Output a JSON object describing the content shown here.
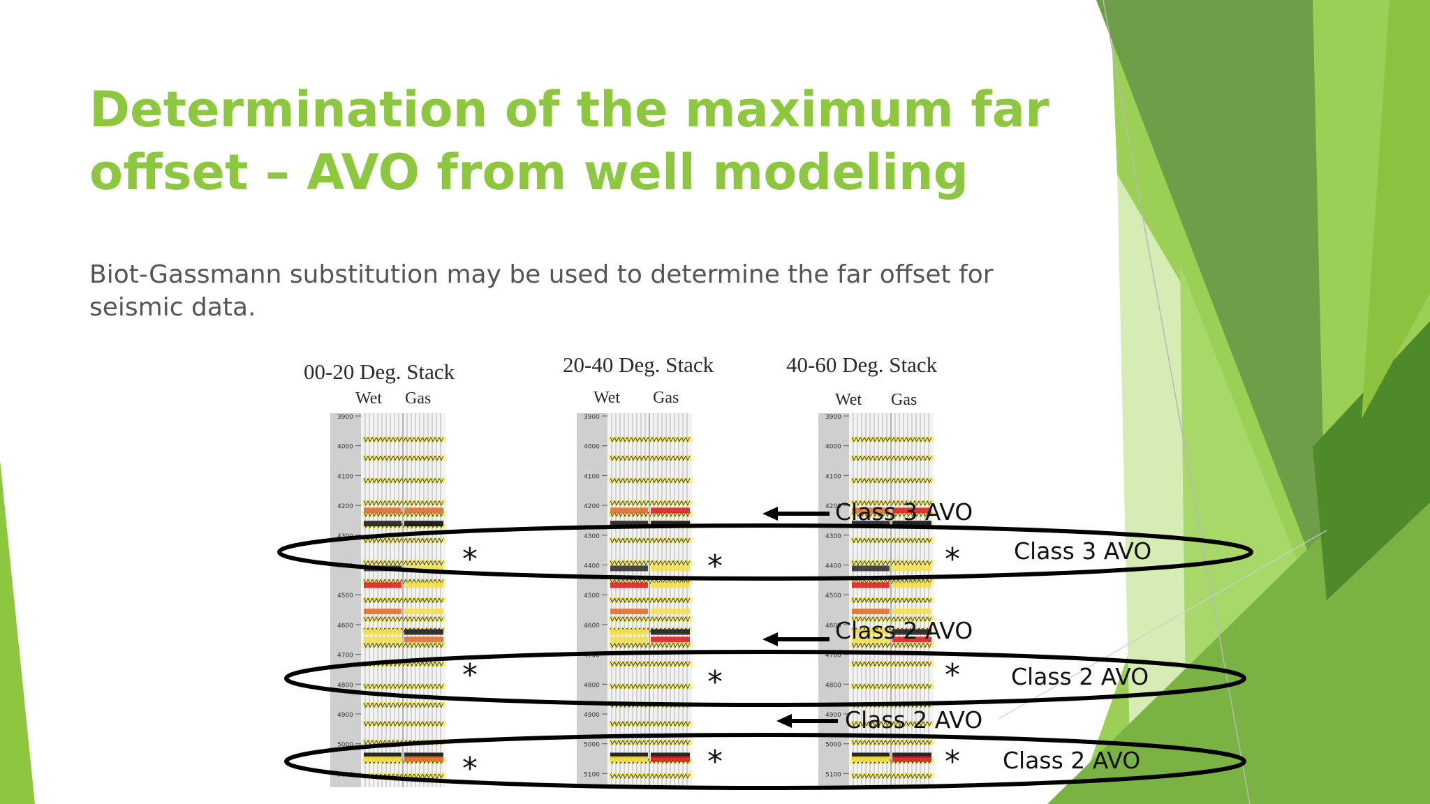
{
  "slide": {
    "title": "Determination of the maximum far offset – AVO from well modeling",
    "body": "Biot-Gassmann substitution may be used to determine the far offset for seismic data."
  },
  "figure": {
    "stacks": [
      {
        "title": "00-20 Deg. Stack",
        "wet": "Wet",
        "gas": "Gas"
      },
      {
        "title": "20-40 Deg. Stack",
        "wet": "Wet",
        "gas": "Gas"
      },
      {
        "title": "40-60 Deg. Stack",
        "wet": "Wet",
        "gas": "Gas"
      }
    ],
    "depth_ticks": [
      "3900",
      "4000",
      "4100",
      "4200",
      "4300",
      "4400",
      "4500",
      "4600",
      "4700",
      "4800",
      "4900",
      "5000",
      "5100"
    ],
    "star": "*",
    "labels": {
      "arrow_class3": "Class 3 AVO",
      "ellipse_class3": "Class 3 AVO",
      "arrow_class2_upper": "Class 2 AVO",
      "ellipse_class2_upper": "Class 2 AVO",
      "arrow_class2_lower": "Class 2 AVO",
      "ellipse_class2_lower": "Class 2 AVO"
    }
  },
  "colors": {
    "title": "#8dc63f",
    "body": "#555555",
    "deco_dark": "#6a9e45",
    "deco_light": "#8dc63f"
  }
}
